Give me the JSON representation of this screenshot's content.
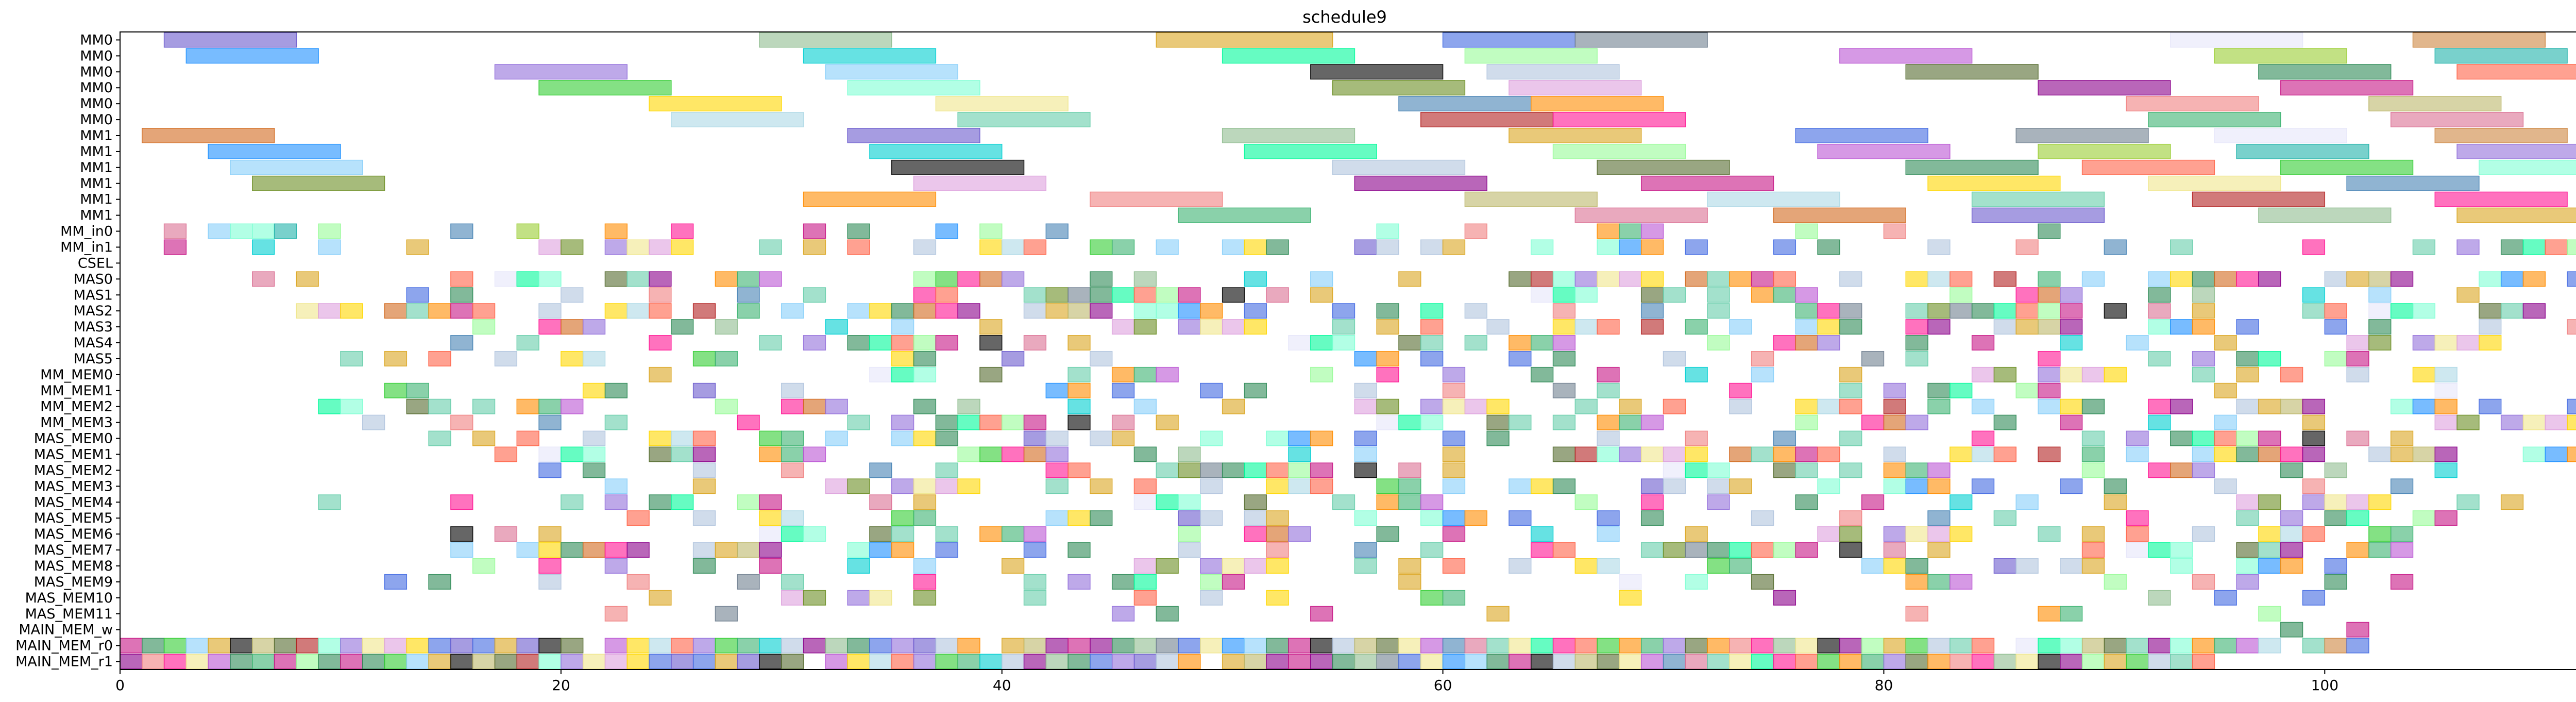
{
  "chart_data": {
    "type": "gantt",
    "title": "schedule9",
    "xlabel": "",
    "ylabel": "",
    "xlim": [
      0,
      116
    ],
    "x_ticks": [
      0,
      20,
      40,
      60,
      80,
      100
    ],
    "grid": false,
    "legend": "none",
    "rows": [
      "MM0",
      "MM0",
      "MM0",
      "MM0",
      "MM0",
      "MM0",
      "MM1",
      "MM1",
      "MM1",
      "MM1",
      "MM1",
      "MM1",
      "MM_in0",
      "MM_in1",
      "CSEL",
      "MAS0",
      "MAS1",
      "MAS2",
      "MAS3",
      "MAS4",
      "MAS5",
      "MM_MEM0",
      "MM_MEM1",
      "MM_MEM2",
      "MM_MEM3",
      "MAS_MEM0",
      "MAS_MEM1",
      "MAS_MEM2",
      "MAS_MEM3",
      "MAS_MEM4",
      "MAS_MEM5",
      "MAS_MEM6",
      "MAS_MEM7",
      "MAS_MEM8",
      "MAS_MEM9",
      "MAS_MEM10",
      "MAS_MEM11",
      "MAIN_MEM_w",
      "MAIN_MEM_r0",
      "MAIN_MEM_r1"
    ],
    "palette": [
      "#6a5acd",
      "#6b8e23",
      "#cd853f",
      "#4682b4",
      "#9acd32",
      "#b22222",
      "#556b2f",
      "#8fbc8f",
      "#dda0dd",
      "#1e90ff",
      "#ff8c00",
      "#20b2aa",
      "#ff1493",
      "#2e8b57",
      "#daa520",
      "#8b008b",
      "#00ced1",
      "#f08080",
      "#9370db",
      "#3cb371",
      "#ff6347",
      "#4169e1",
      "#c71585",
      "#00fa9a",
      "#bdb76b",
      "#87cefa",
      "#db7093",
      "#32cd32",
      "#708090",
      "#ffd700",
      "#98fb98",
      "#add8e6",
      "#000000",
      "#d2691e",
      "#7fffd4",
      "#e6e6fa",
      "#f0e68c",
      "#ba55d3",
      "#66cdaa",
      "#b0c4de"
    ],
    "long_tasks": [
      {
        "row": 0,
        "bars": [
          [
            2,
            8
          ],
          [
            29,
            35
          ],
          [
            47,
            55
          ],
          [
            60,
            66
          ],
          [
            66,
            72
          ],
          [
            93,
            99
          ],
          [
            104,
            110
          ]
        ]
      },
      {
        "row": 1,
        "bars": [
          [
            3,
            9
          ],
          [
            31,
            37
          ],
          [
            50,
            56
          ],
          [
            61,
            67
          ],
          [
            78,
            84
          ],
          [
            95,
            101
          ],
          [
            105,
            111
          ]
        ]
      },
      {
        "row": 2,
        "bars": [
          [
            17,
            23
          ],
          [
            32,
            38
          ],
          [
            54,
            60
          ],
          [
            62,
            68
          ],
          [
            81,
            87
          ],
          [
            97,
            103
          ],
          [
            106,
            112
          ]
        ]
      },
      {
        "row": 3,
        "bars": [
          [
            19,
            25
          ],
          [
            33,
            39
          ],
          [
            55,
            61
          ],
          [
            63,
            69
          ],
          [
            87,
            93
          ],
          [
            98,
            104
          ]
        ]
      },
      {
        "row": 4,
        "bars": [
          [
            24,
            30
          ],
          [
            37,
            43
          ],
          [
            58,
            64
          ],
          [
            64,
            70
          ],
          [
            91,
            97
          ],
          [
            102,
            108
          ]
        ]
      },
      {
        "row": 5,
        "bars": [
          [
            25,
            31
          ],
          [
            38,
            44
          ],
          [
            59,
            65
          ],
          [
            65,
            71
          ],
          [
            92,
            98
          ],
          [
            103,
            109
          ]
        ]
      },
      {
        "row": 6,
        "bars": [
          [
            1,
            7
          ],
          [
            33,
            39
          ],
          [
            50,
            56
          ],
          [
            63,
            69
          ],
          [
            76,
            82
          ],
          [
            86,
            92
          ],
          [
            95,
            101
          ],
          [
            105,
            111
          ]
        ]
      },
      {
        "row": 7,
        "bars": [
          [
            4,
            10
          ],
          [
            34,
            40
          ],
          [
            51,
            57
          ],
          [
            65,
            71
          ],
          [
            77,
            83
          ],
          [
            87,
            93
          ],
          [
            96,
            102
          ],
          [
            106,
            112
          ]
        ]
      },
      {
        "row": 8,
        "bars": [
          [
            5,
            11
          ],
          [
            35,
            41
          ],
          [
            55,
            61
          ],
          [
            67,
            73
          ],
          [
            81,
            87
          ],
          [
            89,
            95
          ],
          [
            98,
            104
          ],
          [
            107,
            113
          ]
        ]
      },
      {
        "row": 9,
        "bars": [
          [
            6,
            12
          ],
          [
            36,
            42
          ],
          [
            56,
            62
          ],
          [
            69,
            75
          ],
          [
            82,
            88
          ],
          [
            92,
            98
          ],
          [
            101,
            107
          ]
        ]
      },
      {
        "row": 10,
        "bars": [
          [
            31,
            37
          ],
          [
            44,
            50
          ],
          [
            61,
            67
          ],
          [
            72,
            78
          ],
          [
            84,
            90
          ],
          [
            94,
            100
          ],
          [
            105,
            111
          ]
        ]
      },
      {
        "row": 11,
        "bars": [
          [
            48,
            54
          ],
          [
            66,
            72
          ],
          [
            75,
            81
          ],
          [
            84,
            90
          ],
          [
            97,
            103
          ],
          [
            106,
            112
          ]
        ]
      }
    ],
    "short_task_seed": 9,
    "short_task_length": 1
  }
}
